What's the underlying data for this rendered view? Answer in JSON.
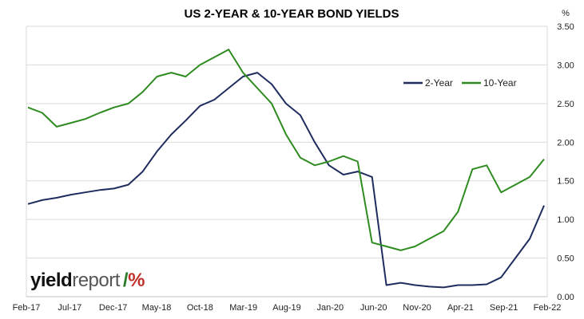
{
  "chart_data": {
    "type": "line",
    "title": "US 2-YEAR & 10-YEAR BOND YIELDS",
    "ylabel": "%",
    "ylim": [
      0,
      3.5
    ],
    "yticks": [
      "0.00",
      "0.50",
      "1.00",
      "1.50",
      "2.00",
      "2.50",
      "3.00",
      "3.50"
    ],
    "x_ticks": [
      "Feb-17",
      "Jul-17",
      "Dec-17",
      "May-18",
      "Oct-18",
      "Mar-19",
      "Aug-19",
      "Jan-20",
      "Jun-20",
      "Nov-20",
      "Apr-21",
      "Sep-21",
      "Feb-22"
    ],
    "legend_position": "top-right",
    "series": [
      {
        "name": "2-Year",
        "color": "#1f2d5e",
        "values": [
          1.2,
          1.25,
          1.28,
          1.32,
          1.35,
          1.38,
          1.4,
          1.45,
          1.62,
          1.88,
          2.1,
          2.28,
          2.47,
          2.55,
          2.7,
          2.85,
          2.9,
          2.75,
          2.5,
          2.35,
          2.0,
          1.7,
          1.58,
          1.62,
          1.55,
          0.15,
          0.18,
          0.15,
          0.13,
          0.12,
          0.15,
          0.15,
          0.16,
          0.25,
          0.5,
          0.75,
          1.18
        ]
      },
      {
        "name": "10-Year",
        "color": "#2e8b1f",
        "values": [
          2.45,
          2.38,
          2.2,
          2.25,
          2.3,
          2.38,
          2.45,
          2.5,
          2.65,
          2.85,
          2.9,
          2.85,
          3.0,
          3.1,
          3.2,
          2.9,
          2.7,
          2.5,
          2.1,
          1.8,
          1.7,
          1.75,
          1.82,
          1.75,
          0.7,
          0.65,
          0.6,
          0.65,
          0.75,
          0.85,
          1.1,
          1.65,
          1.7,
          1.35,
          1.45,
          1.55,
          1.78
        ]
      }
    ]
  },
  "logo": {
    "part1": "yield",
    "part2": "report",
    "symbol_green": "/",
    "symbol_red": "%"
  }
}
